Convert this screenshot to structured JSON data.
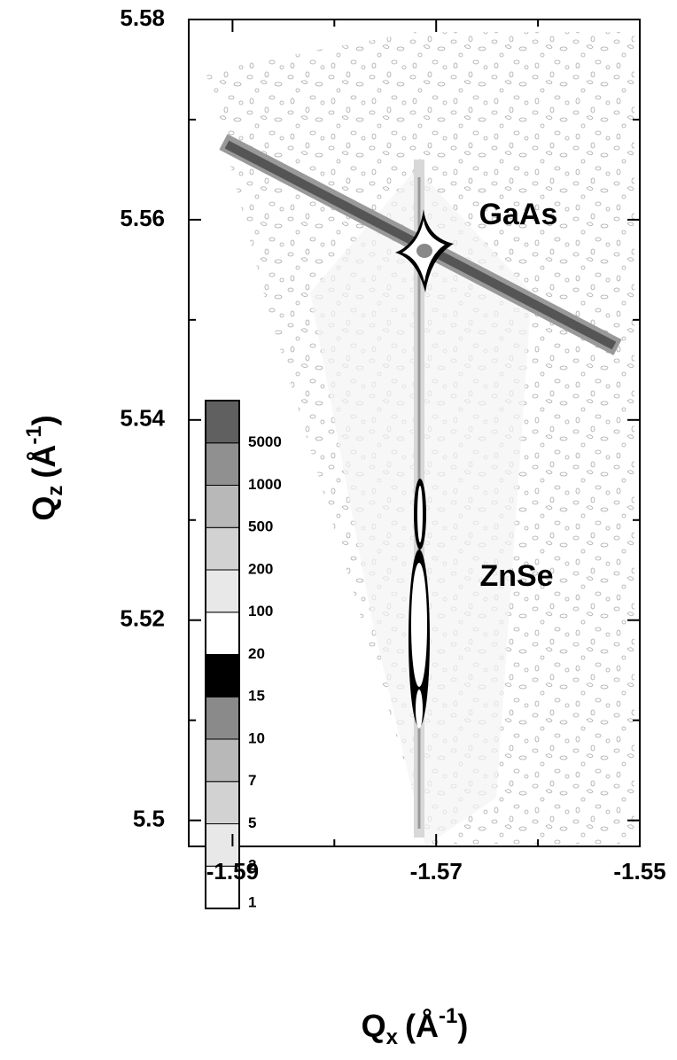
{
  "chart_data": {
    "type": "contour",
    "x_label": {
      "symbol": "Q",
      "subscript": "x",
      "unit": "(Å",
      "superscript": "-1",
      "close": ")"
    },
    "y_label": {
      "symbol": "Q",
      "subscript": "z",
      "unit": "(Å",
      "superscript": "-1",
      "close": ")"
    },
    "xlim": [
      -1.5943,
      -1.55
    ],
    "xticks": [
      -1.59,
      -1.57,
      -1.55
    ],
    "xminorticks": [
      -1.58,
      -1.56
    ],
    "ylim": [
      5.4974,
      5.58
    ],
    "yticks": [
      5.5,
      5.52,
      5.54,
      5.56,
      5.58
    ],
    "yminorticks": [
      5.51,
      5.53,
      5.55,
      5.57
    ],
    "annotations": [
      "GaAs",
      "ZnSe"
    ],
    "colorbar": {
      "levels": [
        1,
        2,
        5,
        7,
        10,
        15,
        20,
        100,
        200,
        500,
        1000,
        5000
      ],
      "colors": [
        "#ffffff",
        "#e8e8e8",
        "#d2d2d2",
        "#b8b8b8",
        "#8a8a8a",
        "#000000",
        "#ffffff",
        "#e8e8e8",
        "#d2d2d2",
        "#b8b8b8",
        "#909090",
        "#606060"
      ]
    }
  }
}
